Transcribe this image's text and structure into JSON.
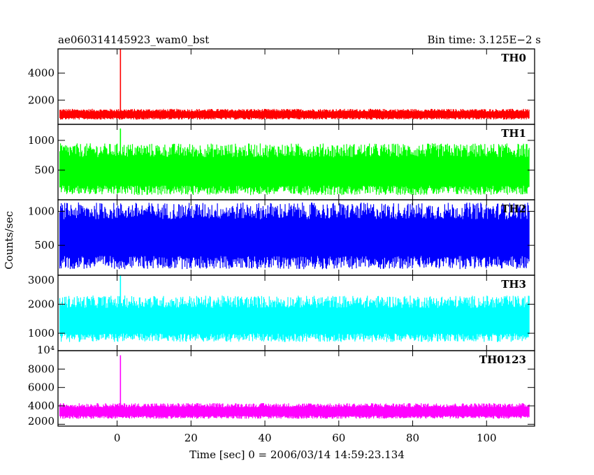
{
  "chart_data": {
    "type": "line",
    "title": "ae060314145923_wam0_bst",
    "subtitle": "Bin time: 3.125E−2 s",
    "xlabel": "Time [sec] 0 = 2006/03/14 14:59:23.134",
    "ylabel": "Counts/sec",
    "xlim": [
      -16,
      113
    ],
    "x_ticks": [
      "0",
      "20",
      "40",
      "60",
      "80",
      "100"
    ],
    "x_tick_values": [
      0,
      20,
      40,
      60,
      80,
      100
    ],
    "panels": [
      {
        "name": "TH0",
        "color": "#ff0000",
        "ylim": [
          200,
          5800
        ],
        "y_ticks": [
          "2000",
          "4000"
        ],
        "y_tick_values": [
          2000,
          4000
        ],
        "baseline": 900,
        "noise_low": 550,
        "noise_high": 1350,
        "spike": {
          "x": 0.9,
          "y": 5800
        }
      },
      {
        "name": "TH1",
        "color": "#00ff00",
        "ylim": [
          0,
          1270
        ],
        "y_ticks": [
          "500",
          "1000"
        ],
        "y_tick_values": [
          500,
          1000
        ],
        "baseline": 430,
        "noise_low": 80,
        "noise_high": 950,
        "spike": {
          "x": 0.9,
          "y": 1200
        }
      },
      {
        "name": "TH2",
        "color": "#0000ff",
        "ylim": [
          60,
          1170
        ],
        "y_ticks": [
          "500",
          "1000"
        ],
        "y_tick_values": [
          500,
          1000
        ],
        "baseline": 580,
        "noise_low": 150,
        "noise_high": 1130,
        "spike": null
      },
      {
        "name": "TH3",
        "color": "#00ffff",
        "ylim": [
          400,
          3000
        ],
        "y_ticks": [
          "1000",
          "2000",
          "3000"
        ],
        "y_tick_values": [
          1000,
          2000,
          3000
        ],
        "baseline": 1350,
        "noise_low": 700,
        "noise_high": 2300,
        "spike": {
          "x": 0.9,
          "y": 3000
        }
      },
      {
        "name": "TH0123",
        "color": "#ff00ff",
        "ylim": [
          1800,
          10000
        ],
        "y_ticks": [
          "2000",
          "4000",
          "6000",
          "8000"
        ],
        "y_tick_values": [
          2000,
          4000,
          6000,
          8000
        ],
        "y_top_label": "10⁴",
        "baseline": 3300,
        "noise_low": 2600,
        "noise_high": 4300,
        "spike": {
          "x": 0.9,
          "y": 9500
        }
      }
    ]
  }
}
